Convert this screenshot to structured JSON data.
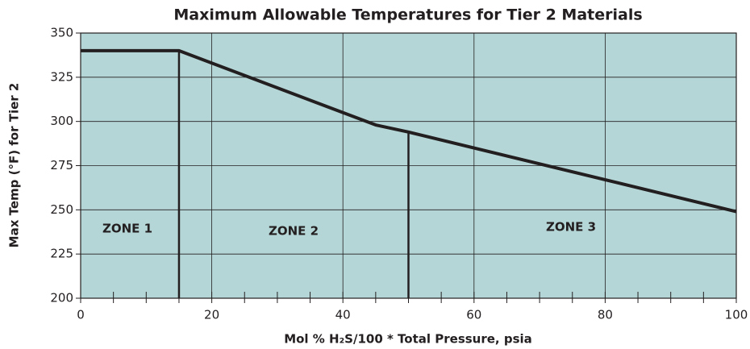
{
  "chart_data": {
    "type": "line",
    "title": "Maximum Allowable Temperatures for Tier 2 Materials",
    "x_label": "Mol % H₂S/100 * Total Pressure, psia",
    "y_label": "Max Temp (°F) for Tier 2",
    "x": [
      0,
      15,
      45,
      50,
      100
    ],
    "series": [
      {
        "name": "Max Temp",
        "color": "#231f20",
        "values": [
          340,
          340,
          298,
          294,
          249
        ]
      }
    ],
    "xlim": [
      0,
      100
    ],
    "xticks": [
      0,
      20,
      40,
      60,
      80,
      100
    ],
    "xminorticks": [
      5,
      10,
      15,
      25,
      30,
      35,
      45,
      50,
      55,
      65,
      70,
      75,
      85,
      90,
      95
    ],
    "ylim": [
      200,
      350
    ],
    "yticks": [
      200,
      225,
      250,
      275,
      300,
      325,
      350
    ],
    "grid": true,
    "background": "#b5d6d6",
    "annotations": [
      "ZONE 1",
      "ZONE 2",
      "ZONE 3"
    ]
  }
}
